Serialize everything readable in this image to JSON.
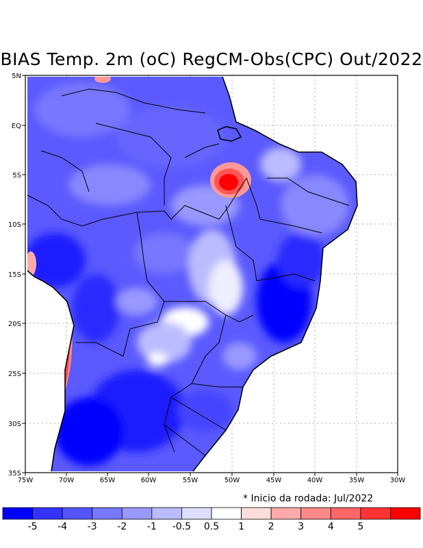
{
  "title": "BIAS Temp. 2m (oC) RegCM-Obs(CPC) Out/2022",
  "note": "* Inicio da rodada: Jul/2022",
  "axes": {
    "lon_ticks": [
      "75W",
      "70W",
      "65W",
      "60W",
      "55W",
      "50W",
      "45W",
      "40W",
      "35W",
      "30W"
    ],
    "lat_ticks": [
      "5N",
      "EQ",
      "5S",
      "10S",
      "15S",
      "20S",
      "25S",
      "30S",
      "35S"
    ]
  },
  "colorbar": {
    "colors": [
      "#0000ff",
      "#3333ff",
      "#5555ff",
      "#7777ff",
      "#9999ff",
      "#bbbbff",
      "#ddddff",
      "#ffffff",
      "#ffdddd",
      "#ffaaaa",
      "#ff8888",
      "#ff6666",
      "#ff3333",
      "#ff0000"
    ],
    "labels": [
      "-5",
      "-4",
      "-3",
      "-2",
      "-1",
      "-0.5",
      "0.5",
      "1",
      "2",
      "3",
      "4",
      "5"
    ]
  },
  "legend_values": {
    "min": -5,
    "max": 5,
    "unit": "oC"
  }
}
